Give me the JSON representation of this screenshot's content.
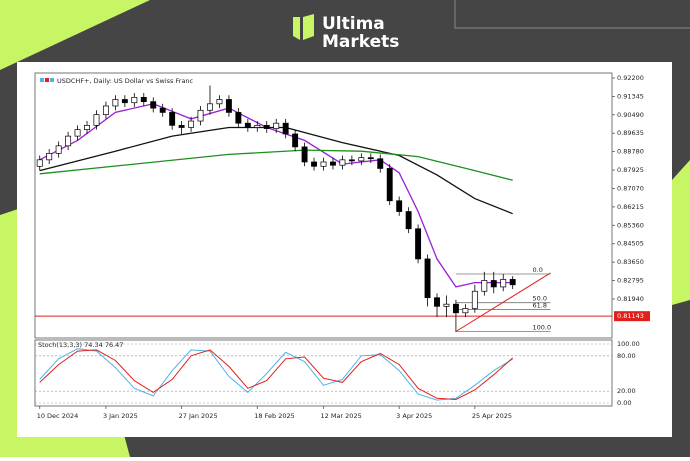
{
  "brand": {
    "line1": "Ultima",
    "line2": "Markets"
  },
  "chart_data": [
    {
      "type": "candlestick",
      "title": "USDCHF+, Daily: US Dollar vs Swiss Franc",
      "x": [
        0,
        1,
        2,
        3,
        4,
        5,
        6,
        7,
        8,
        9,
        10,
        11,
        12,
        13,
        14,
        15,
        16,
        17,
        18,
        19,
        20,
        21,
        22,
        23,
        24,
        25,
        26,
        27,
        28,
        29,
        30,
        31,
        32,
        33,
        34,
        35,
        36,
        37,
        38,
        39,
        40,
        41,
        42,
        43,
        44,
        45,
        46,
        47,
        48,
        49,
        50
      ],
      "open": [
        0.881,
        0.884,
        0.887,
        0.8905,
        0.895,
        0.898,
        0.9,
        0.905,
        0.909,
        0.912,
        0.9105,
        0.913,
        0.911,
        0.908,
        0.906,
        0.9,
        0.899,
        0.902,
        0.907,
        0.91,
        0.912,
        0.906,
        0.901,
        0.899,
        0.9,
        0.8985,
        0.901,
        0.896,
        0.89,
        0.883,
        0.881,
        0.883,
        0.8815,
        0.884,
        0.8835,
        0.885,
        0.8845,
        0.88,
        0.865,
        0.86,
        0.852,
        0.838,
        0.82,
        0.816,
        0.817,
        0.813,
        0.815,
        0.823,
        0.828,
        0.825,
        0.8285
      ],
      "high": [
        0.886,
        0.889,
        0.8925,
        0.897,
        0.9,
        0.902,
        0.907,
        0.911,
        0.914,
        0.914,
        0.915,
        0.915,
        0.913,
        0.91,
        0.908,
        0.902,
        0.904,
        0.909,
        0.9185,
        0.914,
        0.914,
        0.908,
        0.903,
        0.902,
        0.902,
        0.903,
        0.903,
        0.898,
        0.892,
        0.885,
        0.885,
        0.885,
        0.886,
        0.886,
        0.887,
        0.887,
        0.8865,
        0.882,
        0.867,
        0.862,
        0.854,
        0.84,
        0.822,
        0.821,
        0.819,
        0.817,
        0.826,
        0.832,
        0.832,
        0.831,
        0.83
      ],
      "low": [
        0.879,
        0.882,
        0.885,
        0.8885,
        0.893,
        0.896,
        0.898,
        0.903,
        0.907,
        0.9085,
        0.9085,
        0.909,
        0.906,
        0.904,
        0.898,
        0.896,
        0.897,
        0.9,
        0.905,
        0.908,
        0.904,
        0.899,
        0.897,
        0.897,
        0.8965,
        0.8965,
        0.894,
        0.888,
        0.881,
        0.879,
        0.879,
        0.8795,
        0.8795,
        0.8815,
        0.8815,
        0.8825,
        0.878,
        0.863,
        0.858,
        0.85,
        0.836,
        0.816,
        0.811,
        0.811,
        0.804,
        0.811,
        0.813,
        0.821,
        0.822,
        0.823,
        0.824
      ],
      "close": [
        0.884,
        0.887,
        0.8905,
        0.895,
        0.898,
        0.9,
        0.905,
        0.909,
        0.912,
        0.9105,
        0.913,
        0.911,
        0.908,
        0.906,
        0.9,
        0.899,
        0.902,
        0.907,
        0.91,
        0.912,
        0.906,
        0.901,
        0.899,
        0.9,
        0.8985,
        0.901,
        0.896,
        0.89,
        0.883,
        0.881,
        0.883,
        0.8815,
        0.884,
        0.8835,
        0.885,
        0.8845,
        0.88,
        0.865,
        0.86,
        0.852,
        0.838,
        0.82,
        0.816,
        0.817,
        0.813,
        0.815,
        0.823,
        0.828,
        0.825,
        0.8285,
        0.826
      ],
      "lines": [
        {
          "color": "#9b1fd6",
          "x": [
            0,
            4,
            8,
            12,
            16,
            20,
            24,
            28,
            32,
            36,
            38,
            40,
            42,
            44,
            46,
            48,
            50
          ],
          "values": [
            0.884,
            0.893,
            0.906,
            0.91,
            0.903,
            0.908,
            0.899,
            0.893,
            0.882,
            0.884,
            0.878,
            0.86,
            0.838,
            0.825,
            0.827,
            0.827,
            0.827
          ]
        },
        {
          "color": "#111111",
          "x": [
            0,
            8,
            14,
            20,
            26,
            32,
            38,
            42,
            46,
            50
          ],
          "values": [
            0.879,
            0.888,
            0.895,
            0.899,
            0.899,
            0.892,
            0.886,
            0.877,
            0.866,
            0.859
          ]
        },
        {
          "color": "#1e8f1e",
          "x": [
            0,
            10,
            20,
            28,
            34,
            40,
            46,
            50
          ],
          "values": [
            0.8775,
            0.882,
            0.8865,
            0.8885,
            0.888,
            0.8855,
            0.879,
            0.8745
          ]
        }
      ],
      "level": {
        "value": 0.81143,
        "label": "0.81143",
        "color": "#e0201b"
      },
      "fib": {
        "x": [
          44,
          54
        ],
        "levels": [
          {
            "value": 0.831,
            "label": "0.0"
          },
          {
            "value": 0.8177,
            "label": "50.0"
          },
          {
            "value": 0.8145,
            "label": "61.8"
          },
          {
            "value": 0.8043,
            "label": "100.0"
          }
        ]
      },
      "trendline": {
        "color": "#e0201b",
        "x": [
          44,
          54
        ],
        "values": [
          0.8043,
          0.8315
        ]
      },
      "xlim": [
        -0.5,
        60.5
      ],
      "xticks": [
        {
          "value": 0,
          "label": "10 Dec 2024"
        },
        {
          "value": 7,
          "label": "3 Jan 2025"
        },
        {
          "value": 15,
          "label": "27 Jan 2025"
        },
        {
          "value": 23,
          "label": "18 Feb 2025"
        },
        {
          "value": 30,
          "label": "12 Mar 2025"
        },
        {
          "value": 38,
          "label": "3 Apr 2025"
        },
        {
          "value": 46,
          "label": "25 Apr 2025"
        }
      ],
      "ylim": [
        0.8013,
        0.9243
      ],
      "yticks": [
        {
          "value": 0.922,
          "label": "0.92200"
        },
        {
          "value": 0.91345,
          "label": "0.91345"
        },
        {
          "value": 0.9049,
          "label": "0.90490"
        },
        {
          "value": 0.89635,
          "label": "0.89635"
        },
        {
          "value": 0.8878,
          "label": "0.88780"
        },
        {
          "value": 0.87925,
          "label": "0.87925"
        },
        {
          "value": 0.8707,
          "label": "0.87070"
        },
        {
          "value": 0.86215,
          "label": "0.86215"
        },
        {
          "value": 0.8536,
          "label": "0.85360"
        },
        {
          "value": 0.84505,
          "label": "0.84505"
        },
        {
          "value": 0.8365,
          "label": "0.83650"
        },
        {
          "value": 0.82795,
          "label": "0.82795"
        },
        {
          "value": 0.8194,
          "label": "0.81940"
        }
      ]
    },
    {
      "type": "line",
      "title": "Stoch(13,3,3) 74.34 76.47",
      "x": [
        0,
        2,
        4,
        6,
        8,
        10,
        12,
        14,
        16,
        18,
        20,
        22,
        24,
        26,
        28,
        30,
        32,
        34,
        36,
        38,
        40,
        42,
        44,
        46,
        48,
        50
      ],
      "series": [
        {
          "color": "#4fb3e8",
          "values": [
            40,
            75,
            92,
            88,
            60,
            25,
            12,
            55,
            90,
            88,
            45,
            18,
            50,
            86,
            70,
            30,
            40,
            80,
            82,
            55,
            15,
            5,
            8,
            30,
            55,
            74.34
          ]
        },
        {
          "color": "#e0201b",
          "values": [
            35,
            65,
            88,
            90,
            72,
            38,
            18,
            40,
            80,
            90,
            62,
            25,
            38,
            75,
            78,
            42,
            35,
            70,
            84,
            65,
            25,
            8,
            6,
            22,
            48,
            76.47
          ]
        }
      ],
      "ylim": [
        0,
        100
      ],
      "yticks": [
        {
          "value": 100,
          "label": "100.00"
        },
        {
          "value": 80,
          "label": "80.00"
        },
        {
          "value": 20,
          "label": "20.00"
        },
        {
          "value": 0,
          "label": "0.00"
        }
      ]
    }
  ]
}
